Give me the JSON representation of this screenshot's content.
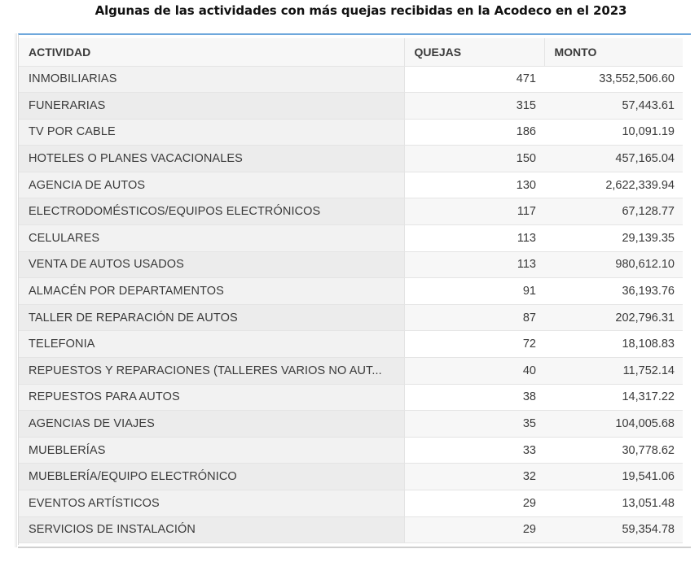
{
  "title": "Algunas de las actividades con más quejas recibidas en la Acodeco en el 2023",
  "chart_data": {
    "type": "table",
    "title": "Algunas de las actividades con más quejas recibidas en la Acodeco en el 2023",
    "columns": [
      "ACTIVIDAD",
      "QUEJAS",
      "MONTO"
    ],
    "rows": [
      {
        "actividad": "INMOBILIARIAS",
        "quejas": "471",
        "monto": "33,552,506.60"
      },
      {
        "actividad": "FUNERARIAS",
        "quejas": "315",
        "monto": "57,443.61"
      },
      {
        "actividad": "TV POR CABLE",
        "quejas": "186",
        "monto": "10,091.19"
      },
      {
        "actividad": "HOTELES O PLANES VACACIONALES",
        "quejas": "150",
        "monto": "457,165.04"
      },
      {
        "actividad": "AGENCIA DE AUTOS",
        "quejas": "130",
        "monto": "2,622,339.94"
      },
      {
        "actividad": "ELECTRODOMÉSTICOS/EQUIPOS ELECTRÓNICOS",
        "quejas": "117",
        "monto": "67,128.77"
      },
      {
        "actividad": "CELULARES",
        "quejas": "113",
        "monto": "29,139.35"
      },
      {
        "actividad": "VENTA DE AUTOS USADOS",
        "quejas": "113",
        "monto": "980,612.10"
      },
      {
        "actividad": "ALMACÉN POR DEPARTAMENTOS",
        "quejas": "91",
        "monto": "36,193.76"
      },
      {
        "actividad": "TALLER DE REPARACIÓN DE AUTOS",
        "quejas": "87",
        "monto": "202,796.31"
      },
      {
        "actividad": "TELEFONIA",
        "quejas": "72",
        "monto": "18,108.83"
      },
      {
        "actividad": "REPUESTOS Y REPARACIONES (TALLERES VARIOS NO AUT...",
        "quejas": "40",
        "monto": "11,752.14"
      },
      {
        "actividad": "REPUESTOS PARA AUTOS",
        "quejas": "38",
        "monto": "14,317.22"
      },
      {
        "actividad": "AGENCIAS DE VIAJES",
        "quejas": "35",
        "monto": "104,005.68"
      },
      {
        "actividad": "MUEBLERÍAS",
        "quejas": "33",
        "monto": "30,778.62"
      },
      {
        "actividad": "MUEBLERÍA/EQUIPO ELECTRÓNICO",
        "quejas": "32",
        "monto": "19,541.06"
      },
      {
        "actividad": "EVENTOS ARTÍSTICOS",
        "quejas": "29",
        "monto": "13,051.48"
      },
      {
        "actividad": "SERVICIOS DE INSTALACIÓN",
        "quejas": "29",
        "monto": "59,354.78"
      }
    ]
  }
}
